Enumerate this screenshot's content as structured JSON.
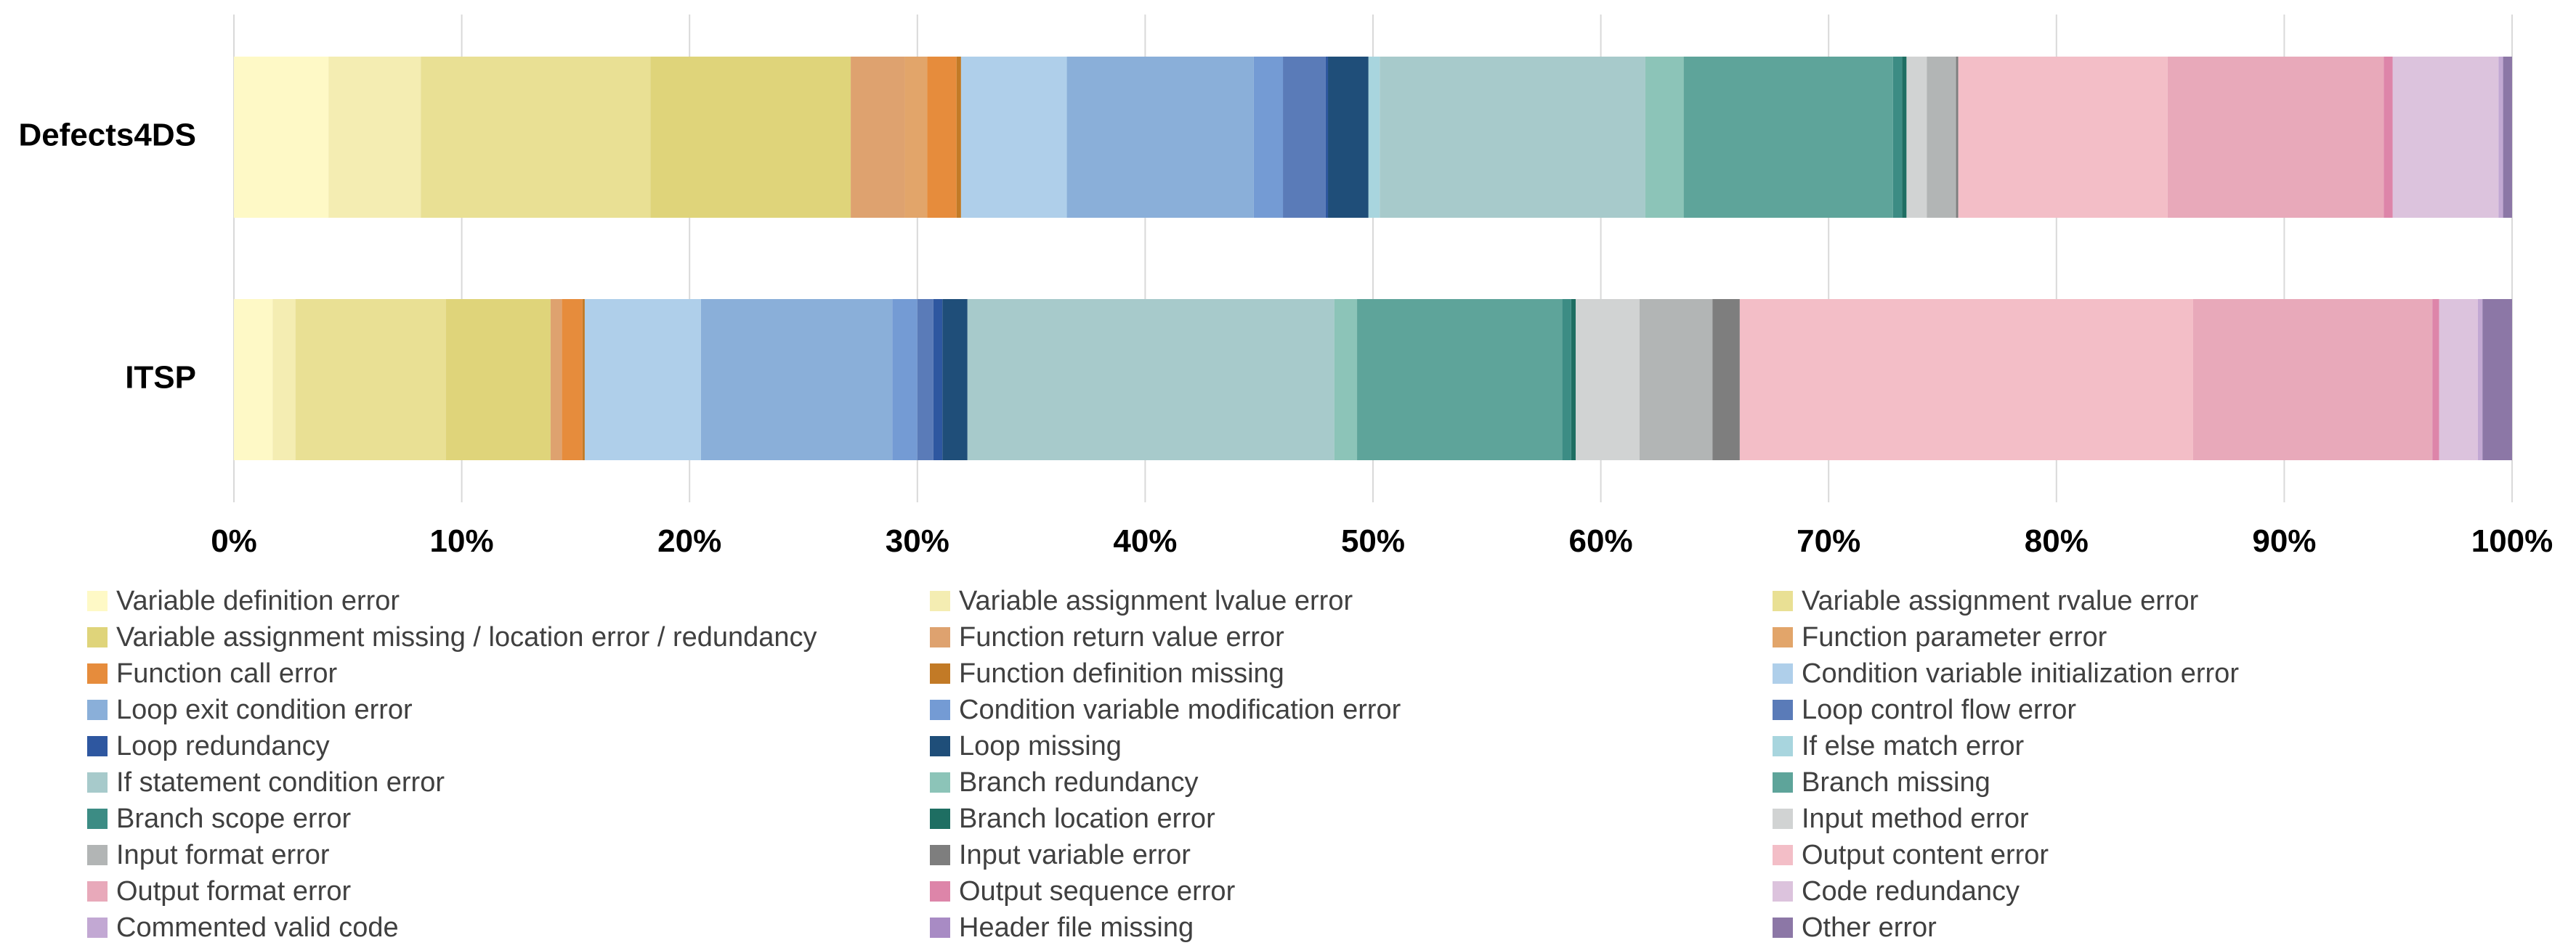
{
  "chart_data": {
    "type": "bar",
    "orientation": "horizontal",
    "stacked": "percent",
    "categories": [
      "Defects4DS",
      "ITSP"
    ],
    "x_ticks": [
      "0%",
      "10%",
      "20%",
      "30%",
      "40%",
      "50%",
      "60%",
      "70%",
      "80%",
      "90%",
      "100%"
    ],
    "xlim": [
      0,
      100
    ],
    "grid": "vertical lines",
    "legend_placement": "bottom",
    "series": [
      {
        "name": "Variable definition error",
        "color": "#FEF9C6",
        "values": [
          4.2,
          1.7
        ]
      },
      {
        "name": "Variable assignment lvalue error",
        "color": "#F4EDB2",
        "values": [
          4.1,
          1.0
        ]
      },
      {
        "name": "Variable assignment rvalue error",
        "color": "#E9E094",
        "values": [
          10.2,
          6.6
        ]
      },
      {
        "name": "Variable assignment missing / location error / redundancy",
        "color": "#DFD47A",
        "values": [
          8.9,
          4.6
        ]
      },
      {
        "name": "Function return value error",
        "color": "#DEA26F",
        "values": [
          2.4,
          0.5
        ]
      },
      {
        "name": "Function parameter error",
        "color": "#E2A56A",
        "values": [
          1.0,
          0.0
        ]
      },
      {
        "name": "Function call error",
        "color": "#E68C3C",
        "values": [
          1.3,
          0.9
        ]
      },
      {
        "name": "Function definition missing",
        "color": "#C27A26",
        "values": [
          0.2,
          0.1
        ]
      },
      {
        "name": "Condition variable initialization error",
        "color": "#AFCFEA",
        "values": [
          4.7,
          5.1
        ]
      },
      {
        "name": "Loop exit condition error",
        "color": "#8AAFD9",
        "values": [
          8.3,
          8.4
        ]
      },
      {
        "name": "Condition variable modification error",
        "color": "#749BD4",
        "values": [
          1.3,
          1.1
        ]
      },
      {
        "name": "Loop control flow error",
        "color": "#5A7BB8",
        "values": [
          1.9,
          0.7
        ]
      },
      {
        "name": "Loop redundancy",
        "color": "#2E57A0",
        "values": [
          0.1,
          0.4
        ]
      },
      {
        "name": "Loop missing",
        "color": "#1F4E79",
        "values": [
          1.8,
          1.1
        ]
      },
      {
        "name": "If else match error",
        "color": "#A8D5DE",
        "values": [
          0.5,
          0.0
        ]
      },
      {
        "name": "If statement condition error",
        "color": "#A7CACB",
        "values": [
          11.8,
          16.1
        ]
      },
      {
        "name": "Branch redundancy",
        "color": "#8CC4B8",
        "values": [
          1.7,
          1.0
        ]
      },
      {
        "name": "Branch missing",
        "color": "#5EA49A",
        "values": [
          9.3,
          9.0
        ]
      },
      {
        "name": "Branch scope error",
        "color": "#3C8C84",
        "values": [
          0.4,
          0.4
        ]
      },
      {
        "name": "Branch location error",
        "color": "#1E6E62",
        "values": [
          0.2,
          0.2
        ]
      },
      {
        "name": "Input method error",
        "color": "#D1D3D3",
        "values": [
          0.9,
          2.8
        ]
      },
      {
        "name": "Input format error",
        "color": "#B2B5B5",
        "values": [
          1.3,
          3.2
        ]
      },
      {
        "name": "Input variable error",
        "color": "#7E7E7E",
        "values": [
          0.1,
          1.2
        ]
      },
      {
        "name": "Output content error",
        "color": "#F3BEC7",
        "values": [
          9.3,
          19.9
        ]
      },
      {
        "name": "Output format error",
        "color": "#E8A9BA",
        "values": [
          9.6,
          10.5
        ]
      },
      {
        "name": "Output sequence error",
        "color": "#DD85A9",
        "values": [
          0.4,
          0.3
        ]
      },
      {
        "name": "Code redundancy",
        "color": "#DCC3DD",
        "values": [
          4.7,
          1.7
        ]
      },
      {
        "name": "Commented valid code",
        "color": "#C2A8D3",
        "values": [
          0.2,
          0.2
        ]
      },
      {
        "name": "Header file missing",
        "color": "#A88BC4",
        "values": [
          0.0,
          0.0
        ]
      },
      {
        "name": "Other error",
        "color": "#8C77A6",
        "values": [
          0.4,
          1.3
        ]
      }
    ]
  }
}
